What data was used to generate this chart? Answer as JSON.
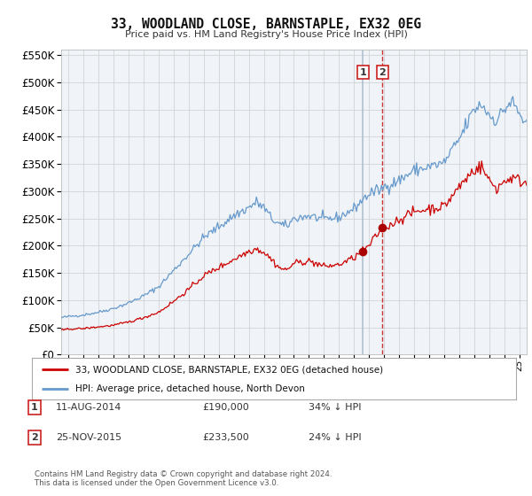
{
  "title": "33, WOODLAND CLOSE, BARNSTAPLE, EX32 0EG",
  "subtitle": "Price paid vs. HM Land Registry's House Price Index (HPI)",
  "hpi_color": "#6699cc",
  "price_color": "#cc0000",
  "marker_color": "#aa0000",
  "bg_color": "#f0f4f8",
  "grid_color": "#cccccc",
  "vline1_color": "#aabbcc",
  "vline2_color": "#cc3333",
  "annotation1": {
    "label": "1",
    "date_x": 2014.6,
    "price": 190000,
    "text": "11-AUG-2014",
    "price_text": "£190,000",
    "pct_text": "34% ↓ HPI"
  },
  "annotation2": {
    "label": "2",
    "date_x": 2015.9,
    "price": 233500,
    "text": "25-NOV-2015",
    "price_text": "£233,500",
    "pct_text": "24% ↓ HPI"
  },
  "legend_line1": "33, WOODLAND CLOSE, BARNSTAPLE, EX32 0EG (detached house)",
  "legend_line2": "HPI: Average price, detached house, North Devon",
  "footer": "Contains HM Land Registry data © Crown copyright and database right 2024.\nThis data is licensed under the Open Government Licence v3.0.",
  "ylim": [
    0,
    560000
  ],
  "xlim_start": 1994.5,
  "xlim_end": 2025.5
}
